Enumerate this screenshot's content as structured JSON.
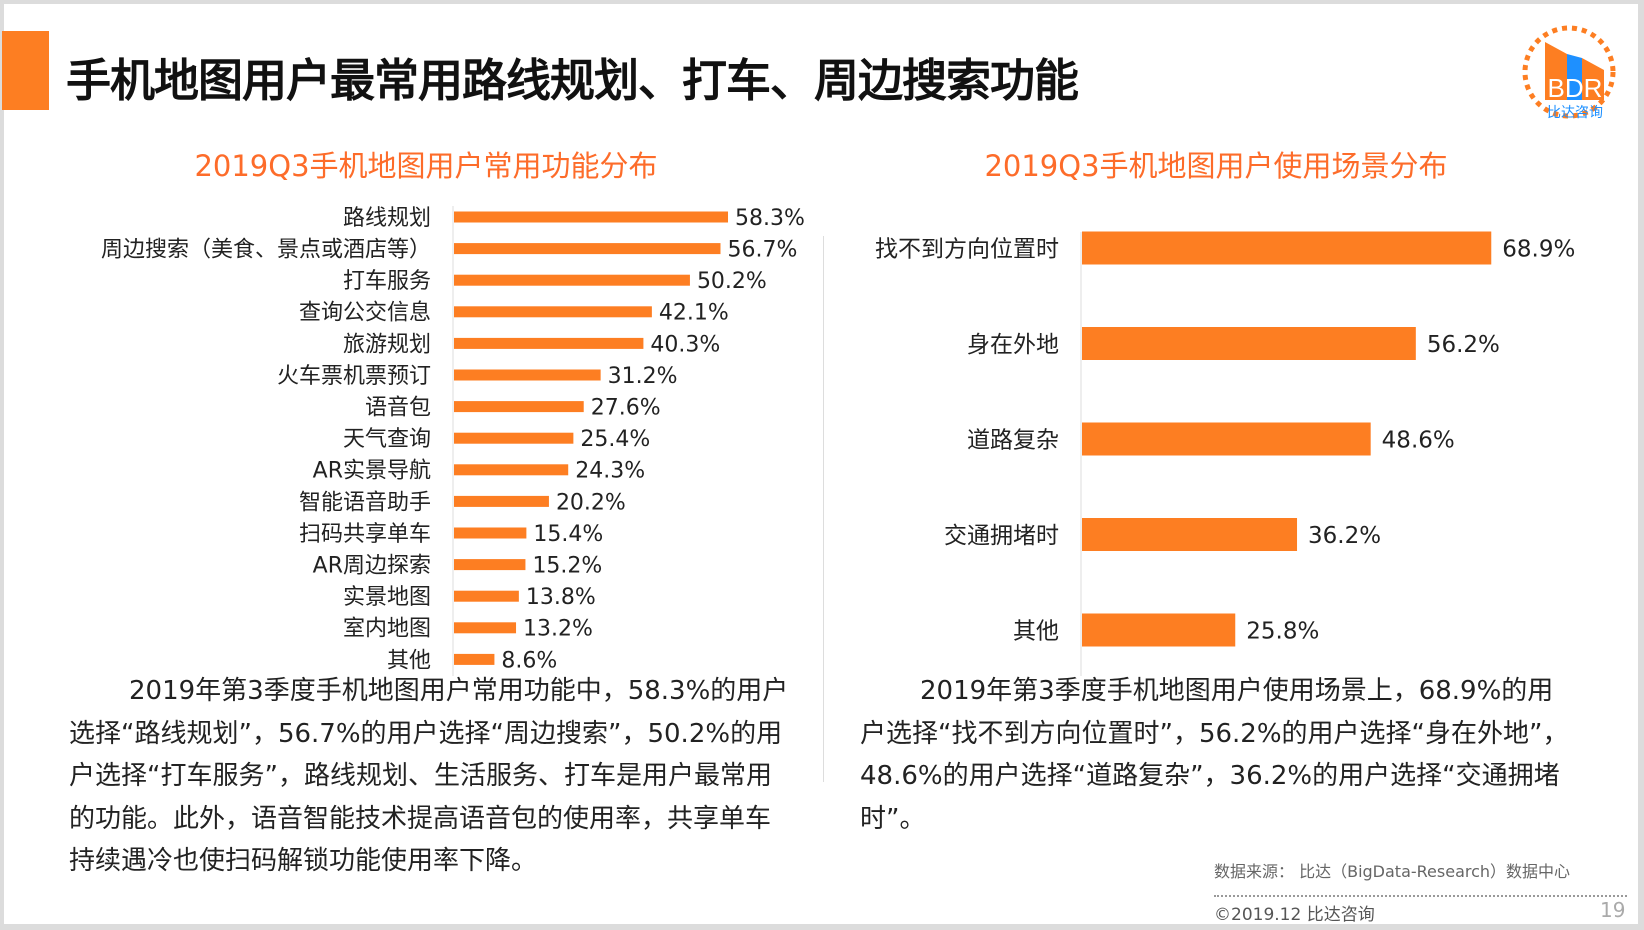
{
  "title": "手机地图用户最常用路线规划、打车、周边搜索功能",
  "logo": {
    "text": "BDR",
    "subtext": "比达咨询"
  },
  "colors": {
    "accent": "#fd7e22",
    "subtitle": "#fd6c2a",
    "logo_blue": "#1e90ff"
  },
  "chart_data": [
    {
      "type": "bar",
      "orientation": "horizontal",
      "title": "2019Q3手机地图用户常用功能分布",
      "categories": [
        "路线规划",
        "周边搜索（美食、景点或酒店等）",
        "打车服务",
        "查询公交信息",
        "旅游规划",
        "火车票机票预订",
        "语音包",
        "天气查询",
        "AR实景导航",
        "智能语音助手",
        "扫码共享单车",
        "AR周边探索",
        "实景地图",
        "室内地图",
        "其他"
      ],
      "values": [
        58.3,
        56.7,
        50.2,
        42.1,
        40.3,
        31.2,
        27.6,
        25.4,
        24.3,
        20.2,
        15.4,
        15.2,
        13.8,
        13.2,
        8.6
      ],
      "labels": [
        "58.3%",
        "56.7%",
        "50.2%",
        "42.1%",
        "40.3%",
        "31.2%",
        "27.6%",
        "25.4%",
        "24.3%",
        "20.2%",
        "15.4%",
        "15.2%",
        "13.8%",
        "13.2%",
        "8.6%"
      ],
      "unit": "%",
      "grid": false
    },
    {
      "type": "bar",
      "orientation": "horizontal",
      "title": "2019Q3手机地图用户使用场景分布",
      "categories": [
        "找不到方向位置时",
        "身在外地",
        "道路复杂",
        "交通拥堵时",
        "其他"
      ],
      "values": [
        68.9,
        56.2,
        48.6,
        36.2,
        25.8
      ],
      "labels": [
        "68.9%",
        "56.2%",
        "48.6%",
        "36.2%",
        "25.8%"
      ],
      "unit": "%",
      "grid": false
    }
  ],
  "left_text": "2019年第3季度手机地图用户常用功能中，58.3%的用户选择“路线规划”，56.7%的用户选择“周边搜索”，50.2%的用户选择“打车服务”，路线规划、生活服务、打车是用户最常用的功能。此外，语音智能技术提高语音包的使用率，共享单车持续遇冷也使扫码解锁功能使用率下降。",
  "right_text": "2019年第3季度手机地图用户使用场景上，68.9%的用户选择“找不到方向位置时”，56.2%的用户选择“身在外地”，48.6%的用户选择“道路复杂”，36.2%的用户选择“交通拥堵时”。",
  "footer": {
    "source": "数据来源： 比达（BigData-Research）数据中心",
    "copyright": "©2019.12  比达咨询",
    "page": "19"
  }
}
